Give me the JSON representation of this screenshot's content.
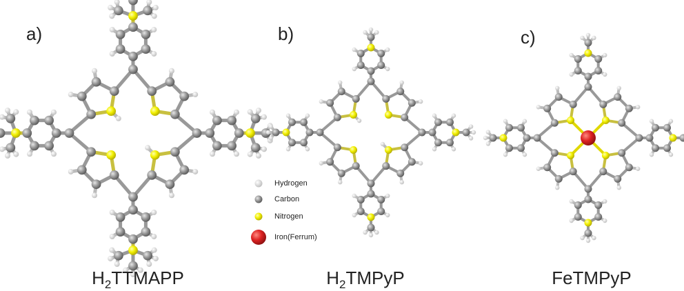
{
  "panels": [
    {
      "label": "a)",
      "name": {
        "base": "H",
        "sub": "2",
        "rest": "TTMAPP"
      }
    },
    {
      "label": "b)",
      "name": {
        "base": "H",
        "sub": "2",
        "rest": "TMPyP"
      }
    },
    {
      "label": "c)",
      "name": {
        "base": "FeTMPyP"
      }
    }
  ],
  "legend": [
    "Hydrogen",
    "Carbon",
    "Nitrogen",
    "Iron(Ferrum)"
  ]
}
